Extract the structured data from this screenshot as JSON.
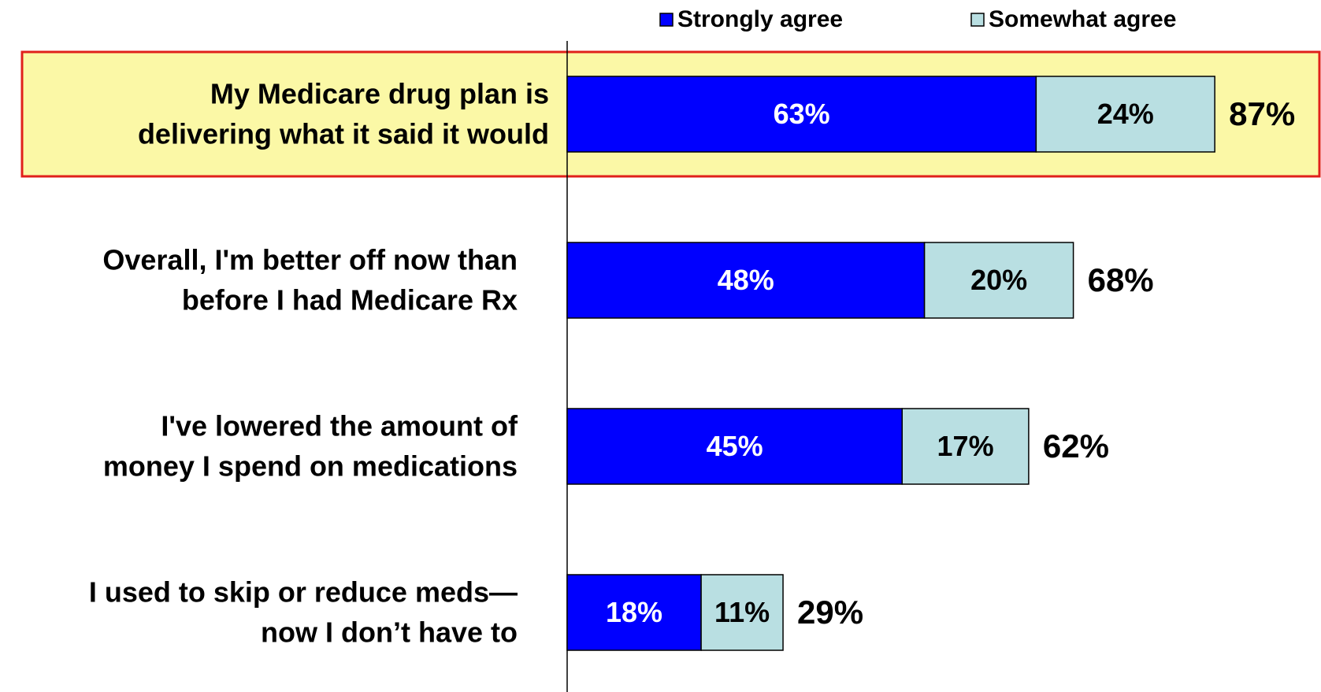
{
  "colors": {
    "strongly_agree": "#0000ff",
    "somewhat_agree": "#b9dfe2",
    "highlight_fill": "#fbf8a6",
    "highlight_border": "#e0201b"
  },
  "chart_data": {
    "type": "bar",
    "orientation": "horizontal",
    "stacked": true,
    "categories": [
      [
        "My Medicare drug plan is",
        "delivering what it said it would"
      ],
      [
        "Overall, I'm better off now than",
        "before I had Medicare Rx"
      ],
      [
        "I've lowered the amount of",
        "money I spend on medications"
      ],
      [
        "I used to skip or reduce meds—",
        "now I don’t have to"
      ]
    ],
    "series": [
      {
        "name": "Strongly agree",
        "values": [
          63,
          48,
          45,
          18
        ]
      },
      {
        "name": "Somewhat agree",
        "values": [
          24,
          20,
          17,
          11
        ]
      }
    ],
    "totals": [
      87,
      68,
      62,
      29
    ],
    "value_suffix": "%",
    "highlighted_category": 0,
    "legend_position": "top-right",
    "xlim": [
      0,
      100
    ],
    "grid": false
  }
}
